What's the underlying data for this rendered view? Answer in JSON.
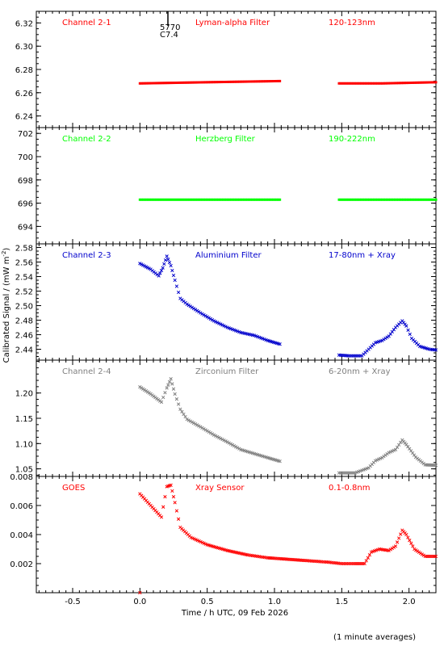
{
  "page": {
    "ylabel": "Calibrated Signal / (mW m",
    "ylabel_sup": "-2",
    "ylabel_end": ")",
    "xlabel": "Time / h UTC, 09 Feb 2026",
    "footnote": "(1 minute averages)",
    "x_ticks": [
      "-0.5",
      "0.0",
      "0.5",
      "1.0",
      "1.5",
      "2.0"
    ],
    "marker_label_1": "5770",
    "marker_label_2": "C7.4"
  },
  "chart_data": [
    {
      "type": "scatter",
      "name": "Channel 2-1",
      "filter": "Lyman-alpha Filter",
      "band": "120-123nm",
      "color": "#ff0000",
      "marker": "dash",
      "xlim": [
        -0.77,
        2.2
      ],
      "ylim": [
        6.23,
        6.33
      ],
      "yticks": [
        "6.24",
        "6.26",
        "6.28",
        "6.30",
        "6.32"
      ],
      "segments": [
        {
          "x": [
            0.0,
            0.5,
            1.04
          ],
          "y": [
            6.268,
            6.269,
            6.27
          ]
        },
        {
          "x": [
            1.48,
            1.8,
            2.2
          ],
          "y": [
            6.268,
            6.268,
            6.269
          ]
        }
      ]
    },
    {
      "type": "scatter",
      "name": "Channel 2-2",
      "filter": "Herzberg Filter",
      "band": "190-222nm",
      "color": "#00ff00",
      "marker": "dash",
      "xlim": [
        -0.77,
        2.2
      ],
      "ylim": [
        692.5,
        702.5
      ],
      "yticks": [
        "694",
        "696",
        "698",
        "700",
        "702"
      ],
      "segments": [
        {
          "x": [
            0.0,
            0.5,
            1.04
          ],
          "y": [
            696.3,
            696.3,
            696.3
          ]
        },
        {
          "x": [
            1.48,
            1.8,
            2.2
          ],
          "y": [
            696.3,
            696.3,
            696.3
          ]
        }
      ]
    },
    {
      "type": "scatter",
      "name": "Channel 2-3",
      "filter": "Aluminium Filter",
      "band": "17-80nm + Xray",
      "color": "#0000cc",
      "marker": "x",
      "xlim": [
        -0.77,
        2.2
      ],
      "ylim": [
        2.425,
        2.585
      ],
      "yticks": [
        "2.44",
        "2.46",
        "2.48",
        "2.50",
        "2.52",
        "2.54",
        "2.56",
        "2.58"
      ],
      "segments": [
        {
          "x": [
            0.0,
            0.08,
            0.14,
            0.17,
            0.2,
            0.23,
            0.26,
            0.3,
            0.35,
            0.45,
            0.55,
            0.65,
            0.75,
            0.85,
            0.95,
            1.04
          ],
          "y": [
            2.558,
            2.55,
            2.541,
            2.552,
            2.568,
            2.555,
            2.535,
            2.51,
            2.502,
            2.49,
            2.479,
            2.47,
            2.463,
            2.459,
            2.452,
            2.447
          ]
        },
        {
          "x": [
            1.48,
            1.55,
            1.65,
            1.7,
            1.75,
            1.8,
            1.85,
            1.9,
            1.95,
            1.98,
            2.02,
            2.08,
            2.15,
            2.2
          ],
          "y": [
            2.432,
            2.431,
            2.431,
            2.44,
            2.449,
            2.452,
            2.458,
            2.47,
            2.479,
            2.472,
            2.455,
            2.444,
            2.44,
            2.439
          ]
        }
      ]
    },
    {
      "type": "scatter",
      "name": "Channel 2-4",
      "filter": "Zirconium Filter",
      "band": "6-20nm + Xray",
      "color": "#808080",
      "marker": "x",
      "xlim": [
        -0.77,
        2.2
      ],
      "ylim": [
        1.035,
        1.265
      ],
      "yticks": [
        "1.05",
        "1.10",
        "1.15",
        "1.20"
      ],
      "segments": [
        {
          "x": [
            0.0,
            0.08,
            0.16,
            0.2,
            0.23,
            0.26,
            0.3,
            0.35,
            0.45,
            0.55,
            0.65,
            0.75,
            0.85,
            0.95,
            1.04
          ],
          "y": [
            1.212,
            1.198,
            1.182,
            1.21,
            1.228,
            1.198,
            1.168,
            1.148,
            1.133,
            1.117,
            1.103,
            1.088,
            1.08,
            1.072,
            1.065
          ]
        },
        {
          "x": [
            1.48,
            1.6,
            1.7,
            1.75,
            1.8,
            1.85,
            1.9,
            1.95,
            1.98,
            2.05,
            2.12,
            2.2
          ],
          "y": [
            1.042,
            1.042,
            1.052,
            1.066,
            1.072,
            1.082,
            1.088,
            1.107,
            1.098,
            1.073,
            1.058,
            1.057
          ]
        }
      ]
    },
    {
      "type": "scatter",
      "name": "GOES",
      "filter": "Xray Sensor",
      "band": "0.1-0.8nm",
      "color": "#ff0000",
      "marker": "x",
      "xlim": [
        -0.77,
        2.2
      ],
      "ylim": [
        0.0,
        0.008
      ],
      "yticks": [
        "0.002",
        "0.004",
        "0.006",
        "0.008"
      ],
      "segments": [
        {
          "x": [
            0.0
          ],
          "y": [
            0.0
          ]
        },
        {
          "x": [
            0.0,
            0.08,
            0.16,
            0.2,
            0.23,
            0.26,
            0.3,
            0.38,
            0.5,
            0.65,
            0.8,
            0.95,
            1.1,
            1.25,
            1.4,
            1.5,
            1.6,
            1.67,
            1.72,
            1.78,
            1.85,
            1.9,
            1.95,
            1.98,
            2.04,
            2.12,
            2.2
          ],
          "y": [
            0.0068,
            0.006,
            0.0052,
            0.0073,
            0.0074,
            0.0062,
            0.0045,
            0.0038,
            0.0033,
            0.0029,
            0.0026,
            0.0024,
            0.0023,
            0.0022,
            0.0021,
            0.002,
            0.002,
            0.002,
            0.0028,
            0.003,
            0.0029,
            0.0032,
            0.0043,
            0.004,
            0.003,
            0.0025,
            0.0025
          ]
        }
      ]
    }
  ]
}
